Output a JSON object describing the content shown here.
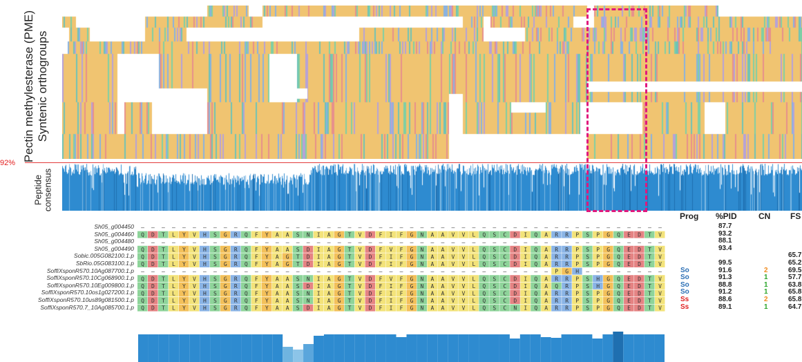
{
  "y_label_line1": "Pectin methylesterase (PME)",
  "y_label_line2": "Syntenic orthogroups",
  "threshold_label": "92%",
  "consensus_label_line1": "Peptide",
  "consensus_label_line2": "consensus",
  "headers": {
    "prog": "Prog",
    "pid": "%PID",
    "cn": "CN",
    "fs": "FS"
  },
  "sequences": [
    {
      "name": "Sh05_g004450",
      "seq": "------------------------------------------",
      "prog": "",
      "pid": "87.7",
      "cn": "",
      "fs": ""
    },
    {
      "name": "Sh05_g004460",
      "seq": "QDTLYVHSGRQFYAASNIAGTVDFIFGNAAVVLQSCDIQARRPSPGQEDTV",
      "prog": "",
      "pid": "93.2",
      "cn": "",
      "fs": ""
    },
    {
      "name": "Sh05_g004480",
      "seq": "------------------------------------------",
      "prog": "",
      "pid": "88.1",
      "cn": "",
      "fs": ""
    },
    {
      "name": "Sh05_g004490",
      "seq": "QDTLYVHSGRQFYAASDIAGTVDFVFGNAAVVLQSCDIQARRPSPGQEDTV",
      "prog": "",
      "pid": "93.4",
      "cn": "",
      "fs": ""
    },
    {
      "name": "Sobic.005G082100.1.p",
      "seq": "QDTLYVHSGRQFYAGTDIAGTVDFIFGNAAVVLQSCDIQARRPSPGQEDTV",
      "prog": "",
      "pid": "",
      "cn": "",
      "fs": "65.7"
    },
    {
      "name": "SbRio.05G083100.1.p",
      "seq": "QDTLYVHSGRQFYAGTDIAGTVDFIFGNAAVVLQSCDIQARRPSPGQEDTV",
      "prog": "",
      "pid": "99.5",
      "cn": "",
      "fs": "65.2"
    },
    {
      "name": "SoffiXsponR570.10Ag087700.1.p",
      "seq": "----------------------------------------PGH---",
      "prog": "So",
      "pid": "91.6",
      "cn": "2",
      "fs": "69.5"
    },
    {
      "name": "SoffiXsponR570.10Cg068900.1.p",
      "seq": "QDTLYVHSGRQFYAASNIAGTVDFVFGNAAVVLQSCDIQARRPSHGQEDTV",
      "prog": "So",
      "pid": "91.3",
      "cn": "1",
      "fs": "57.7"
    },
    {
      "name": "SoffiXsponR570.10Eg009800.1.p",
      "seq": "QDTLYVHSGRQFYAASDIAGTVDFIFGNAAVVLQSCDIQAQRPSHGQEDTV",
      "prog": "So",
      "pid": "88.8",
      "cn": "1",
      "fs": "63.8"
    },
    {
      "name": "SoffiXsponR570.10os1g027200.1.p",
      "seq": "QDTLYVHSGRQFYAASNIAGTVDFIFGNAAVVLQSCDIQARRPSPGQEDTV",
      "prog": "So",
      "pid": "91.2",
      "cn": "1",
      "fs": "65.8"
    },
    {
      "name": "SoffiXsponR570.10us89g081500.1.p",
      "seq": "QDTLYVHSGRQFYAASNIAGTVDFIFGNAAVVLQSCDIQARRPSPGQEDTV",
      "prog": "Ss",
      "pid": "88.6",
      "cn": "2",
      "fs": "65.8"
    },
    {
      "name": "SoffiXsponR570.7_10Ag085700.1.p",
      "seq": "QDTLYVHSGRQFYAASDIAGTVDFIFGNAAVVLQSCNIQARRPSPGQEDTV",
      "prog": "Ss",
      "pid": "89.1",
      "cn": "1",
      "fs": "64.7"
    }
  ],
  "colors": {
    "so": "#2b6fb5",
    "ss": "#e02020",
    "cn_orange": "#f08a1e",
    "cn_green": "#2aa52a",
    "box": "#e0187d",
    "threshold": "#e23a3a",
    "consensus": "#2e8bd0"
  }
}
